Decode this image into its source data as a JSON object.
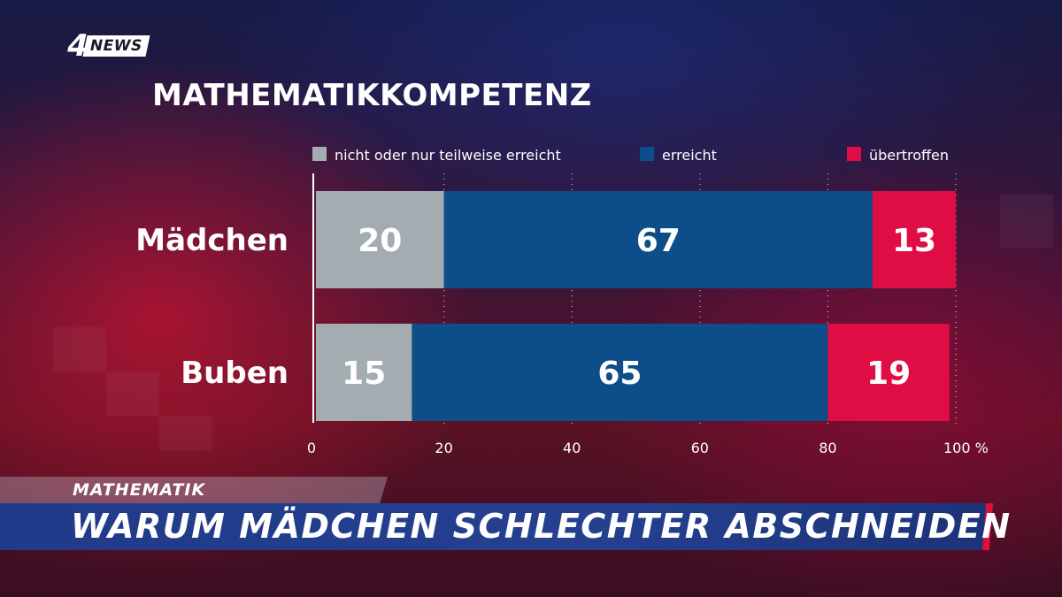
{
  "brand": {
    "logo_number": "4",
    "logo_text": "NEWS"
  },
  "chart_data": {
    "type": "bar",
    "stacked": true,
    "orientation": "horizontal",
    "title": "MATHEMATIKKOMPETENZ",
    "categories": [
      "Mädchen",
      "Buben"
    ],
    "series": [
      {
        "name": "nicht oder nur teilweise erreicht",
        "values": [
          20,
          15
        ],
        "color": "#a3adb1"
      },
      {
        "name": "erreicht",
        "values": [
          67,
          65
        ],
        "color": "#0d4d8a"
      },
      {
        "name": "übertroffen",
        "values": [
          13,
          19
        ],
        "color": "#df0d44"
      }
    ],
    "xlim": [
      0,
      100
    ],
    "xticks": [
      "0",
      "20",
      "40",
      "60",
      "80",
      "100 %"
    ],
    "grid": "dotted vertical",
    "legend": "top"
  },
  "banner": {
    "topic": "MATHEMATIK",
    "headline": "WARUM MÄDCHEN SCHLECHTER ABSCHNEIDEN"
  },
  "colors": {
    "accent_red": "#e0103c",
    "banner_blue": "#24408f"
  }
}
